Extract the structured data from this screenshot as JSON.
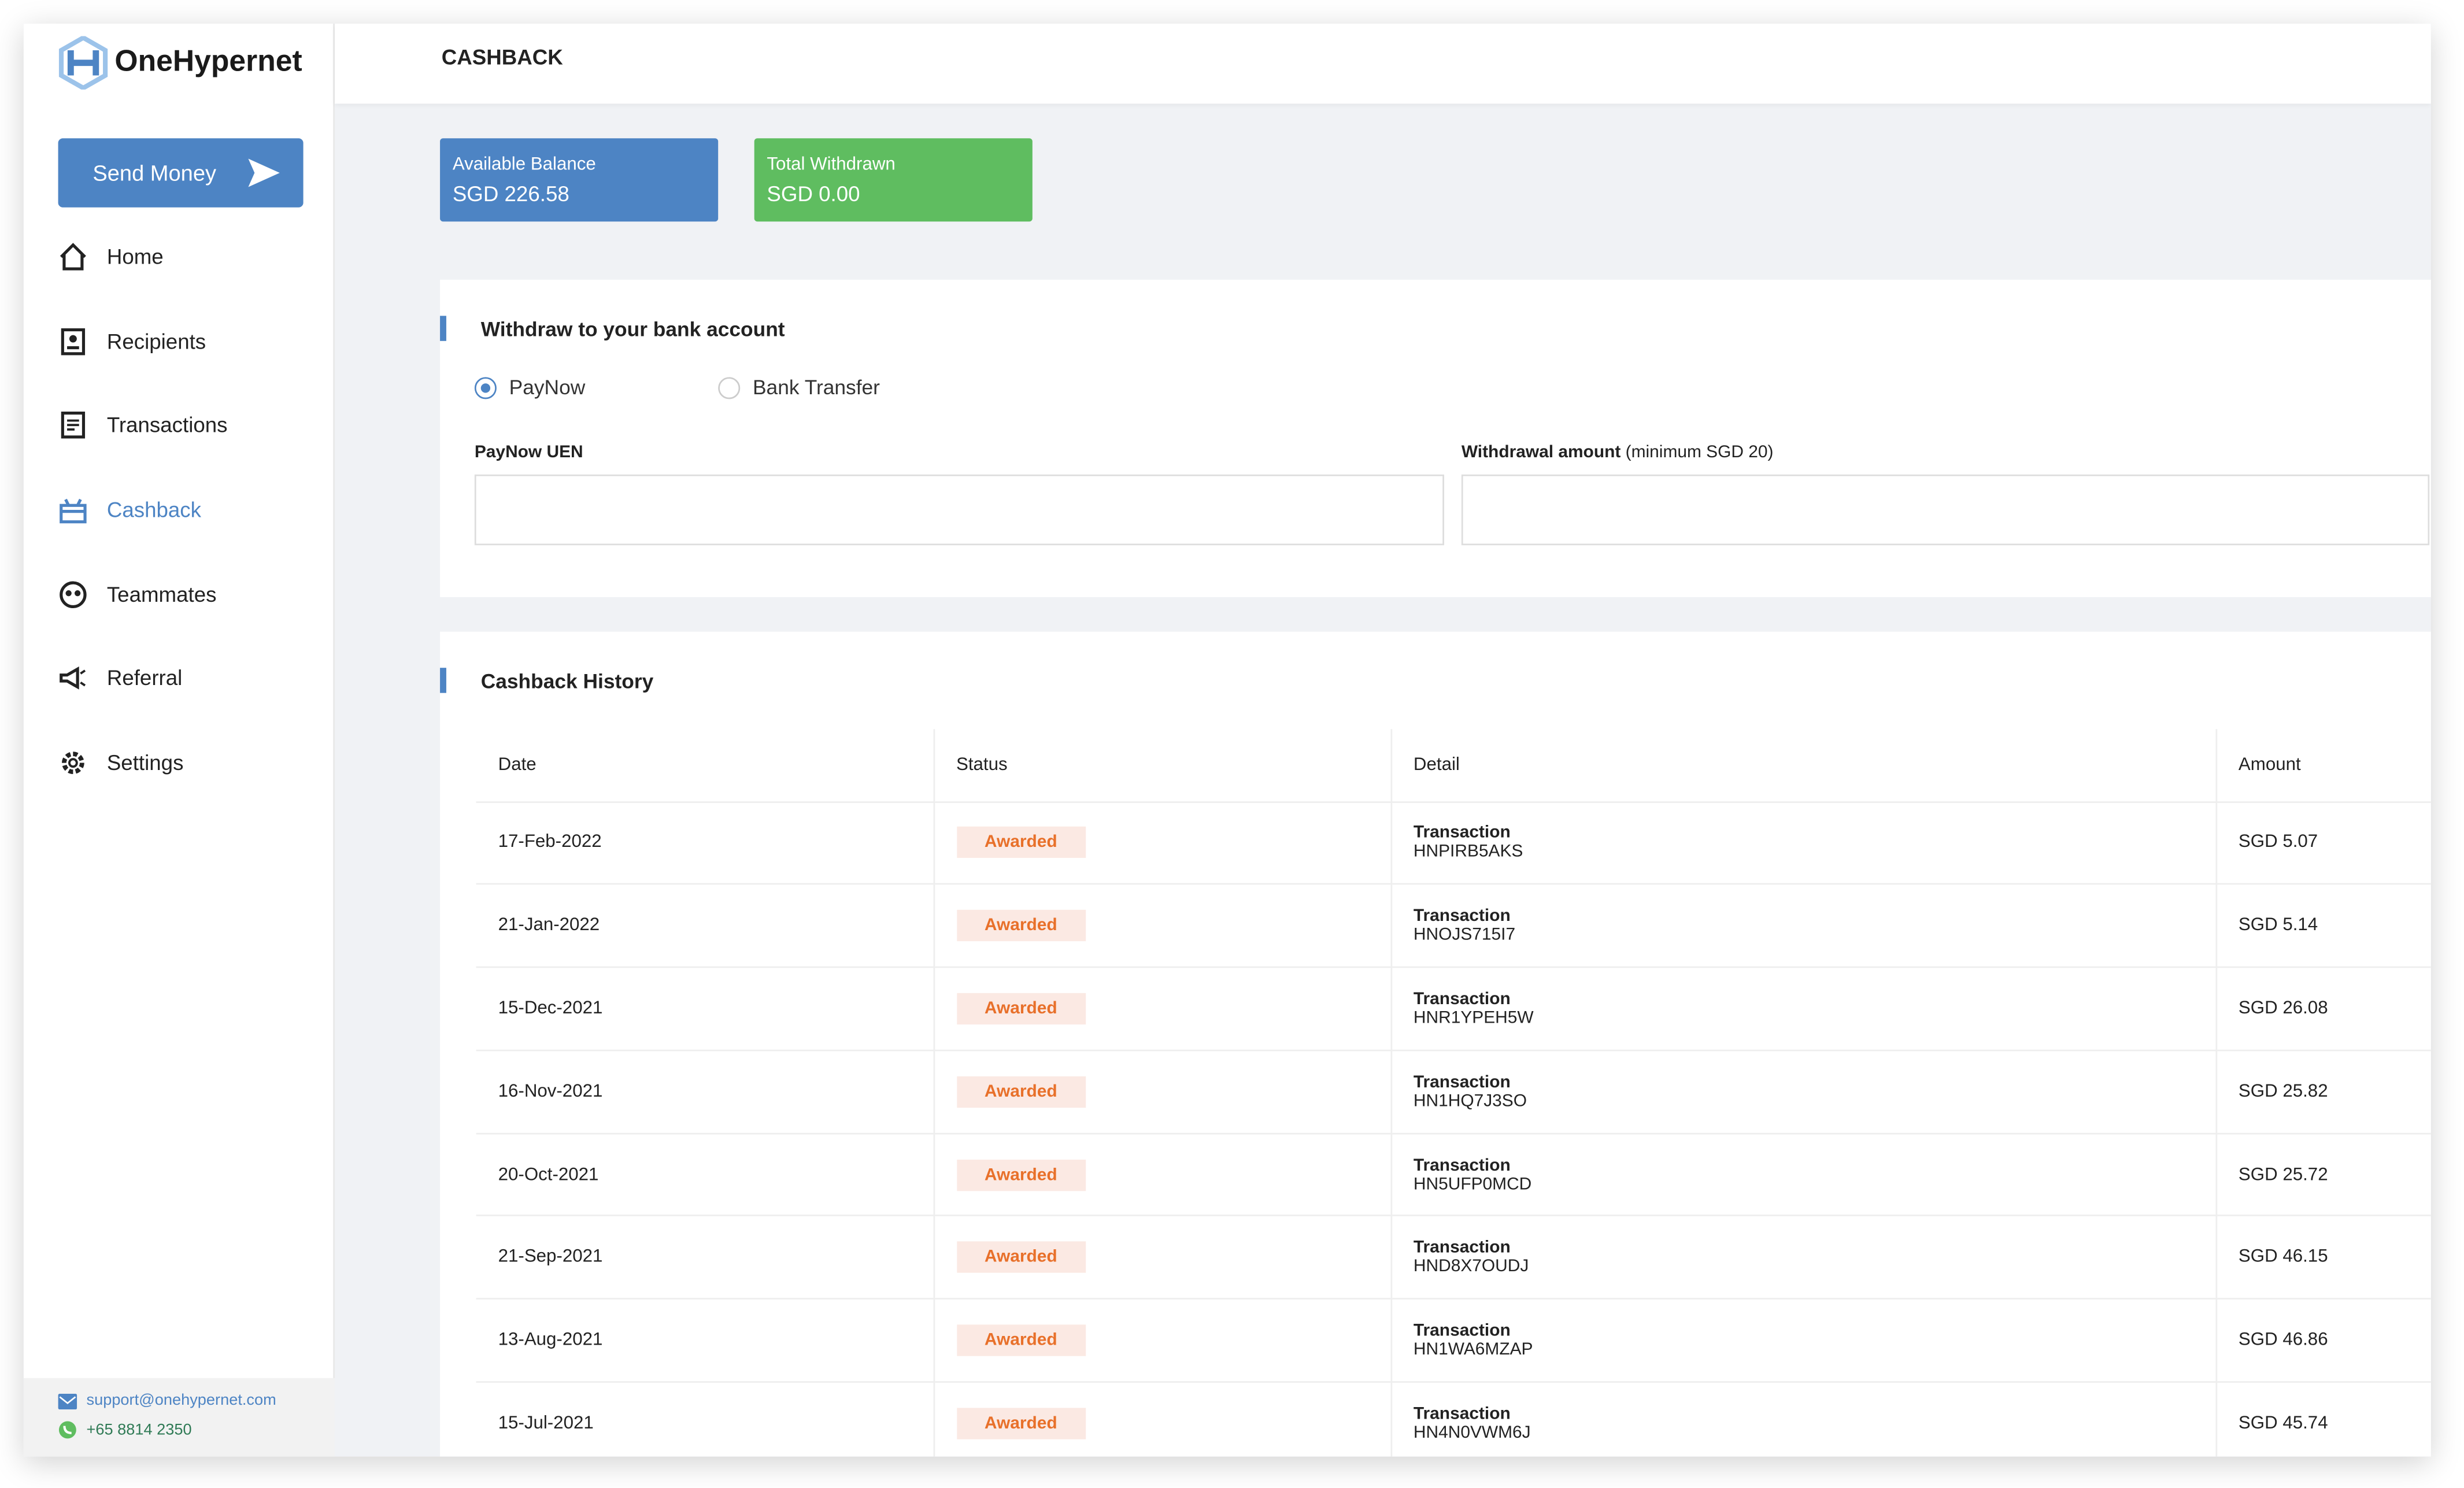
{
  "brand": {
    "name": "OneHypernet",
    "accent": "#4d84c4",
    "success": "#5fbd60"
  },
  "sidebar": {
    "send_money": "Send Money",
    "items": [
      {
        "label": "Home",
        "icon": "home-icon"
      },
      {
        "label": "Recipients",
        "icon": "contact-book-icon"
      },
      {
        "label": "Transactions",
        "icon": "receipt-icon"
      },
      {
        "label": "Cashback",
        "icon": "gift-icon",
        "active": true
      },
      {
        "label": "Teammates",
        "icon": "people-icon"
      },
      {
        "label": "Referral",
        "icon": "megaphone-icon"
      },
      {
        "label": "Settings",
        "icon": "gear-icon"
      }
    ],
    "email": "support@onehypernet.com",
    "phone": "+65 8814 2350"
  },
  "header": {
    "title": "CASHBACK"
  },
  "stats": {
    "available_label": "Available Balance",
    "available_value": "SGD 226.58",
    "withdrawn_label": "Total Withdrawn",
    "withdrawn_value": "SGD 0.00"
  },
  "withdraw": {
    "title": "Withdraw to your bank account",
    "options": [
      "PayNow",
      "Bank Transfer"
    ],
    "selected": "PayNow",
    "uen_label": "PayNow UEN",
    "uen_value": "",
    "amount_label": "Withdrawal amount",
    "amount_hint": "(minimum SGD 20)",
    "amount_value": ""
  },
  "history": {
    "title": "Cashback History",
    "columns": [
      "Date",
      "Status",
      "Detail",
      "Amount"
    ],
    "rows": [
      {
        "date": "17-Feb-2022",
        "status": "Awarded",
        "detail_type": "Transaction",
        "detail_id": "HNPIRB5AKS",
        "amount": "SGD 5.07"
      },
      {
        "date": "21-Jan-2022",
        "status": "Awarded",
        "detail_type": "Transaction",
        "detail_id": "HNOJS715I7",
        "amount": "SGD 5.14"
      },
      {
        "date": "15-Dec-2021",
        "status": "Awarded",
        "detail_type": "Transaction",
        "detail_id": "HNR1YPEH5W",
        "amount": "SGD 26.08"
      },
      {
        "date": "16-Nov-2021",
        "status": "Awarded",
        "detail_type": "Transaction",
        "detail_id": "HN1HQ7J3SO",
        "amount": "SGD 25.82"
      },
      {
        "date": "20-Oct-2021",
        "status": "Awarded",
        "detail_type": "Transaction",
        "detail_id": "HN5UFP0MCD",
        "amount": "SGD 25.72"
      },
      {
        "date": "21-Sep-2021",
        "status": "Awarded",
        "detail_type": "Transaction",
        "detail_id": "HND8X7OUDJ",
        "amount": "SGD 46.15"
      },
      {
        "date": "13-Aug-2021",
        "status": "Awarded",
        "detail_type": "Transaction",
        "detail_id": "HN1WA6MZAP",
        "amount": "SGD 46.86"
      },
      {
        "date": "15-Jul-2021",
        "status": "Awarded",
        "detail_type": "Transaction",
        "detail_id": "HN4N0VWM6J",
        "amount": "SGD 45.74"
      }
    ]
  }
}
